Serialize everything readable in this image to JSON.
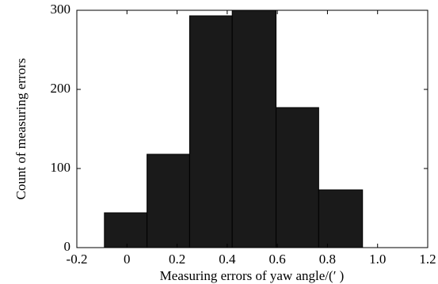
{
  "chart_data": {
    "type": "histogram",
    "xlabel": "Measuring errors of yaw angle/(′ )",
    "ylabel": "Count of measuring errors",
    "bins": [
      -0.09,
      0.08,
      0.25,
      0.42,
      0.595,
      0.765,
      0.94
    ],
    "values": [
      44,
      118,
      293,
      300,
      177,
      73
    ],
    "color": "#1a1a1a",
    "xlim": [
      -0.2,
      1.2
    ],
    "xticks": [
      -0.2,
      0,
      0.2,
      0.4,
      0.6,
      0.8,
      {
        "value": 1.0,
        "label": "1.0"
      },
      1.2
    ],
    "ylim": [
      0,
      300
    ],
    "yticks": [
      0,
      100,
      200,
      300
    ]
  }
}
